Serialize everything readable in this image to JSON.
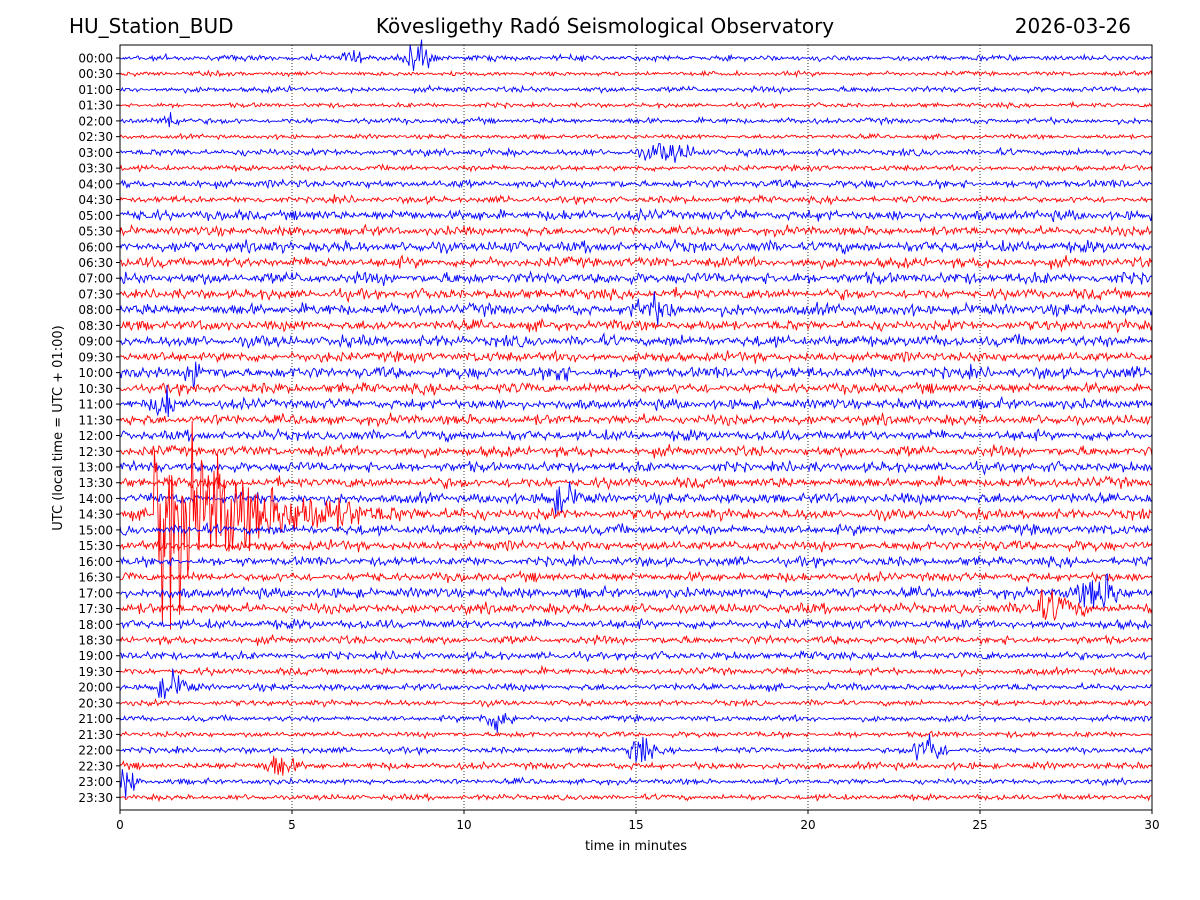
{
  "header": {
    "station": "HU_Station_BUD",
    "observatory": "Köveslig­ethy Radó Seismological Observatory",
    "date": "2026-03-26"
  },
  "chart_data": {
    "type": "line",
    "title": "Köveslig­ethy Radó Seismological Observatory",
    "xlabel": "time in minutes",
    "ylabel": "UTC (local time = UTC + 01:00)",
    "xlim": [
      0,
      30
    ],
    "xticks": [
      "0",
      "5",
      "10",
      "15",
      "20",
      "25",
      "30"
    ],
    "xtick_values": [
      0,
      5,
      10,
      15,
      20,
      25,
      30
    ],
    "grid": "vertical dotted at 5-minute intervals",
    "colors": {
      "even_row": "#0000ff",
      "odd_row": "#ff0000"
    },
    "rows": [
      "00:00",
      "00:30",
      "01:00",
      "01:30",
      "02:00",
      "02:30",
      "03:00",
      "03:30",
      "04:00",
      "04:30",
      "05:00",
      "05:30",
      "06:00",
      "06:30",
      "07:00",
      "07:30",
      "08:00",
      "08:30",
      "09:00",
      "09:30",
      "10:00",
      "10:30",
      "11:00",
      "11:30",
      "12:00",
      "12:30",
      "13:00",
      "13:30",
      "14:00",
      "14:30",
      "15:00",
      "15:30",
      "16:00",
      "16:30",
      "17:00",
      "17:30",
      "18:00",
      "18:30",
      "19:00",
      "19:30",
      "20:00",
      "20:30",
      "21:00",
      "21:30",
      "22:00",
      "22:30",
      "23:00",
      "23:30"
    ],
    "noise_level": [
      0.5,
      0.4,
      0.5,
      0.4,
      0.5,
      0.4,
      0.6,
      0.5,
      0.7,
      0.6,
      0.9,
      0.8,
      1.0,
      0.9,
      1.0,
      0.9,
      1.0,
      0.9,
      1.0,
      0.9,
      1.0,
      0.9,
      0.9,
      0.9,
      0.9,
      0.9,
      0.9,
      0.9,
      0.9,
      0.9,
      0.9,
      0.9,
      0.8,
      0.8,
      0.9,
      0.9,
      0.8,
      0.7,
      0.7,
      0.6,
      0.6,
      0.5,
      0.5,
      0.5,
      0.5,
      0.6,
      0.5,
      0.5
    ],
    "events": [
      {
        "row": "00:00",
        "minute": 8.6,
        "amplitude": 8,
        "duration_min": 0.8
      },
      {
        "row": "00:00",
        "minute": 6.8,
        "amplitude": 4,
        "duration_min": 0.5
      },
      {
        "row": "02:00",
        "minute": 1.5,
        "amplitude": 5,
        "duration_min": 0.5
      },
      {
        "row": "03:00",
        "minute": 16.0,
        "amplitude": 4,
        "duration_min": 1.5
      },
      {
        "row": "08:00",
        "minute": 15.5,
        "amplitude": 5,
        "duration_min": 1.0
      },
      {
        "row": "10:00",
        "minute": 2.2,
        "amplitude": 8,
        "duration_min": 0.4
      },
      {
        "row": "10:00",
        "minute": 12.8,
        "amplitude": 7,
        "duration_min": 0.3
      },
      {
        "row": "11:00",
        "minute": 1.3,
        "amplitude": 8,
        "duration_min": 0.5
      },
      {
        "row": "14:00",
        "minute": 12.8,
        "amplitude": 6,
        "duration_min": 1.0
      },
      {
        "row": "14:30",
        "minute": 1.0,
        "amplitude": 55,
        "duration_min": 6.0
      },
      {
        "row": "17:00",
        "minute": 28.5,
        "amplitude": 8,
        "duration_min": 1.2
      },
      {
        "row": "17:30",
        "minute": 27.0,
        "amplitude": 6,
        "duration_min": 1.5
      },
      {
        "row": "20:00",
        "minute": 1.5,
        "amplitude": 6,
        "duration_min": 1.0
      },
      {
        "row": "21:00",
        "minute": 11.0,
        "amplitude": 6,
        "duration_min": 0.8
      },
      {
        "row": "22:00",
        "minute": 15.1,
        "amplitude": 8,
        "duration_min": 0.6
      },
      {
        "row": "22:00",
        "minute": 23.5,
        "amplitude": 9,
        "duration_min": 0.8
      },
      {
        "row": "22:30",
        "minute": 4.6,
        "amplitude": 6,
        "duration_min": 0.8
      },
      {
        "row": "23:00",
        "minute": 0.2,
        "amplitude": 7,
        "duration_min": 0.5
      }
    ]
  }
}
